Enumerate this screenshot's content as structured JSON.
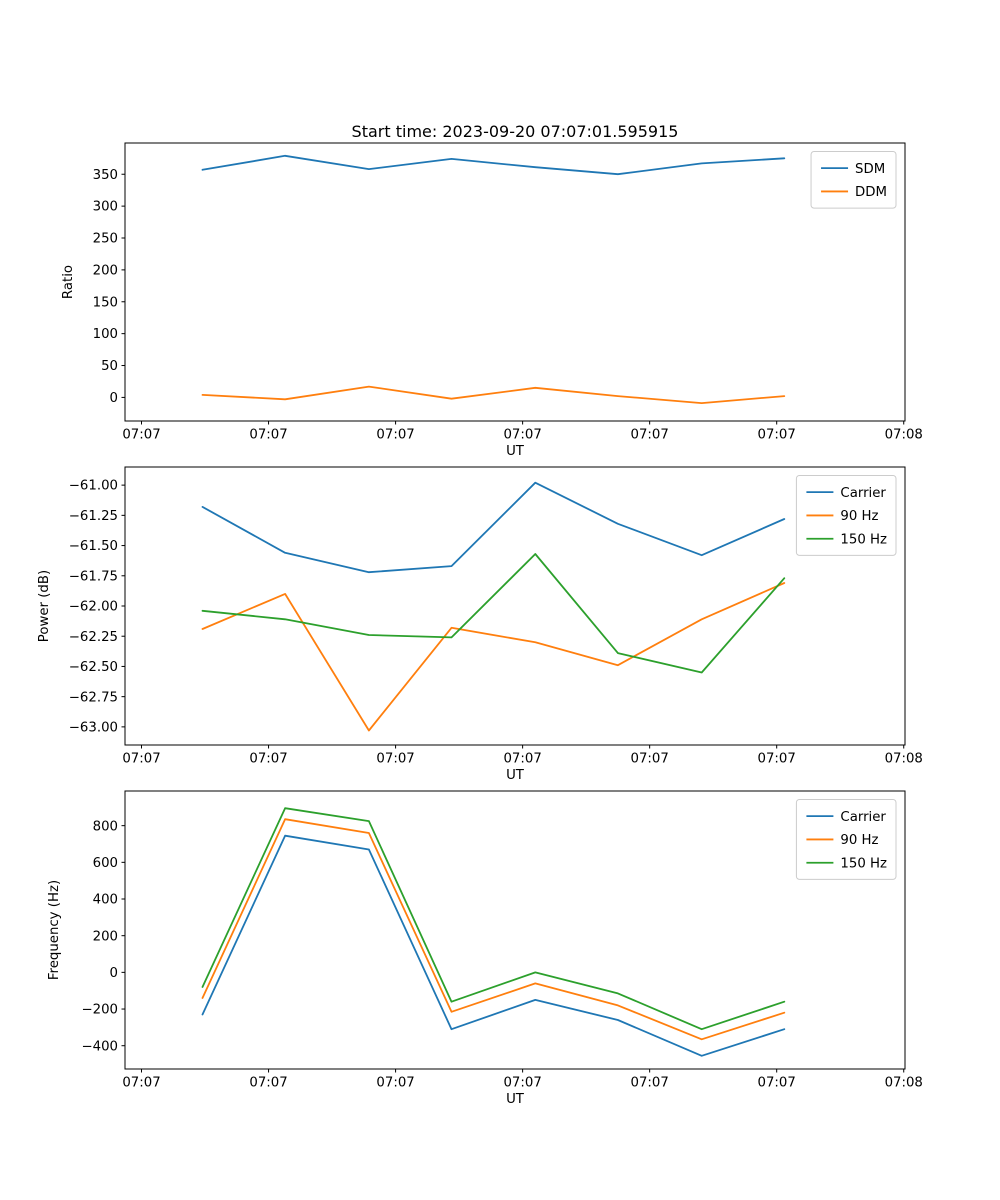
{
  "title": "Start time: 2023-09-20 07:07:01.595915",
  "palette": {
    "blue": "#1f77b4",
    "orange": "#ff7f0e",
    "green": "#2ca02c",
    "legend_border": "#cccccc",
    "axes_edge": "#000000"
  },
  "chart_data": [
    {
      "type": "line",
      "name": "ratio-plot",
      "title": "",
      "xlabel": "UT",
      "ylabel": "Ratio",
      "grid": false,
      "legend_position": "upper right",
      "x": [
        4.8,
        11.3,
        17.9,
        24.4,
        31.0,
        37.5,
        44.1,
        50.6
      ],
      "xlim": [
        -1.3,
        60.1
      ],
      "xticks": [
        0,
        10,
        20,
        30,
        40,
        50,
        60
      ],
      "xtick_labels": [
        "07:07",
        "07:07",
        "07:07",
        "07:07",
        "07:07",
        "07:07",
        "07:08"
      ],
      "ylim": [
        -37,
        399
      ],
      "yticks": [
        0,
        50,
        100,
        150,
        200,
        250,
        300,
        350
      ],
      "ytick_labels": [
        "0",
        "50",
        "100",
        "150",
        "200",
        "250",
        "300",
        "350"
      ],
      "series": [
        {
          "name": "SDM",
          "color": "#1f77b4",
          "values": [
            357,
            379,
            358,
            374,
            361,
            350,
            367,
            375
          ]
        },
        {
          "name": "DDM",
          "color": "#ff7f0e",
          "values": [
            4,
            -3,
            17,
            -2,
            15,
            2,
            -9,
            2
          ]
        }
      ]
    },
    {
      "type": "line",
      "name": "power-plot",
      "title": "",
      "xlabel": "UT",
      "ylabel": "Power (dB)",
      "grid": false,
      "legend_position": "upper right",
      "x": [
        4.8,
        11.3,
        17.9,
        24.4,
        31.0,
        37.5,
        44.1,
        50.6
      ],
      "xlim": [
        -1.3,
        60.1
      ],
      "xticks": [
        0,
        10,
        20,
        30,
        40,
        50,
        60
      ],
      "xtick_labels": [
        "07:07",
        "07:07",
        "07:07",
        "07:07",
        "07:07",
        "07:07",
        "07:08"
      ],
      "ylim": [
        -63.15,
        -60.85
      ],
      "yticks": [
        -63.0,
        -62.75,
        -62.5,
        -62.25,
        -62.0,
        -61.75,
        -61.5,
        -61.25,
        -61.0
      ],
      "ytick_labels": [
        "−63.00",
        "−62.75",
        "−62.50",
        "−62.25",
        "−62.00",
        "−61.75",
        "−61.50",
        "−61.25",
        "−61.00"
      ],
      "series": [
        {
          "name": "Carrier",
          "color": "#1f77b4",
          "values": [
            -61.18,
            -61.56,
            -61.72,
            -61.67,
            -60.98,
            -61.32,
            -61.58,
            -61.28
          ]
        },
        {
          "name": "90 Hz",
          "color": "#ff7f0e",
          "values": [
            -62.19,
            -61.9,
            -63.03,
            -62.18,
            -62.3,
            -62.49,
            -62.11,
            -61.81
          ]
        },
        {
          "name": "150 Hz",
          "color": "#2ca02c",
          "values": [
            -62.04,
            -62.11,
            -62.24,
            -62.26,
            -61.57,
            -62.39,
            -62.55,
            -61.77
          ]
        }
      ]
    },
    {
      "type": "line",
      "name": "frequency-plot",
      "title": "",
      "xlabel": "UT",
      "ylabel": "Frequency (Hz)",
      "grid": false,
      "legend_position": "upper right",
      "x": [
        4.8,
        11.3,
        17.9,
        24.4,
        31.0,
        37.5,
        44.1,
        50.6
      ],
      "xlim": [
        -1.3,
        60.1
      ],
      "xticks": [
        0,
        10,
        20,
        30,
        40,
        50,
        60
      ],
      "xtick_labels": [
        "07:07",
        "07:07",
        "07:07",
        "07:07",
        "07:07",
        "07:07",
        "07:08"
      ],
      "ylim": [
        -527,
        989
      ],
      "yticks": [
        -400,
        -200,
        0,
        200,
        400,
        600,
        800
      ],
      "ytick_labels": [
        "−400",
        "−200",
        "0",
        "200",
        "400",
        "600",
        "800"
      ],
      "series": [
        {
          "name": "Carrier",
          "color": "#1f77b4",
          "values": [
            -230,
            745,
            670,
            -310,
            -150,
            -260,
            -455,
            -310
          ]
        },
        {
          "name": "90 Hz",
          "color": "#ff7f0e",
          "values": [
            -140,
            835,
            760,
            -215,
            -60,
            -180,
            -365,
            -220
          ]
        },
        {
          "name": "150 Hz",
          "color": "#2ca02c",
          "values": [
            -80,
            895,
            825,
            -160,
            0,
            -115,
            -310,
            -160
          ]
        }
      ]
    }
  ]
}
